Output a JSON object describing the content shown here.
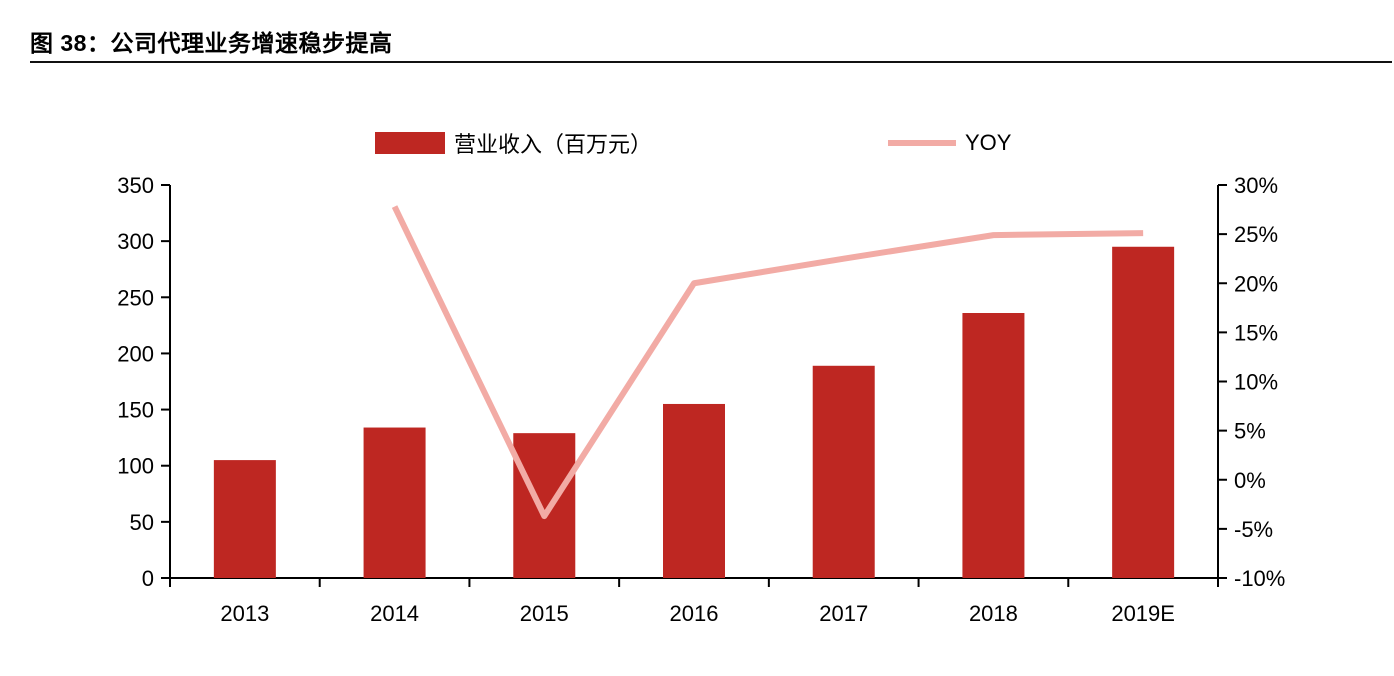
{
  "page": {
    "title": "图 38：公司代理业务增速稳步提高"
  },
  "chart_data": {
    "type": "bar",
    "title": "图 38：公司代理业务增速稳步提高",
    "categories": [
      "2013",
      "2014",
      "2015",
      "2016",
      "2017",
      "2018",
      "2019E"
    ],
    "series": [
      {
        "name": "营业收入（百万元）",
        "type": "bar",
        "axis": "left",
        "color": "#BE2722",
        "values": [
          105,
          134,
          129,
          155,
          189,
          236,
          295
        ]
      },
      {
        "name": "YOY",
        "type": "line",
        "axis": "right",
        "color": "#F2ABA5",
        "values": [
          null,
          27.8,
          -3.7,
          20.0,
          22.5,
          24.9,
          25.1
        ]
      }
    ],
    "left_axis": {
      "min": 0,
      "max": 350,
      "step": 50
    },
    "right_axis": {
      "min": -10,
      "max": 30,
      "step": 5,
      "suffix": "%"
    },
    "legend_position": "top",
    "grid": false
  }
}
